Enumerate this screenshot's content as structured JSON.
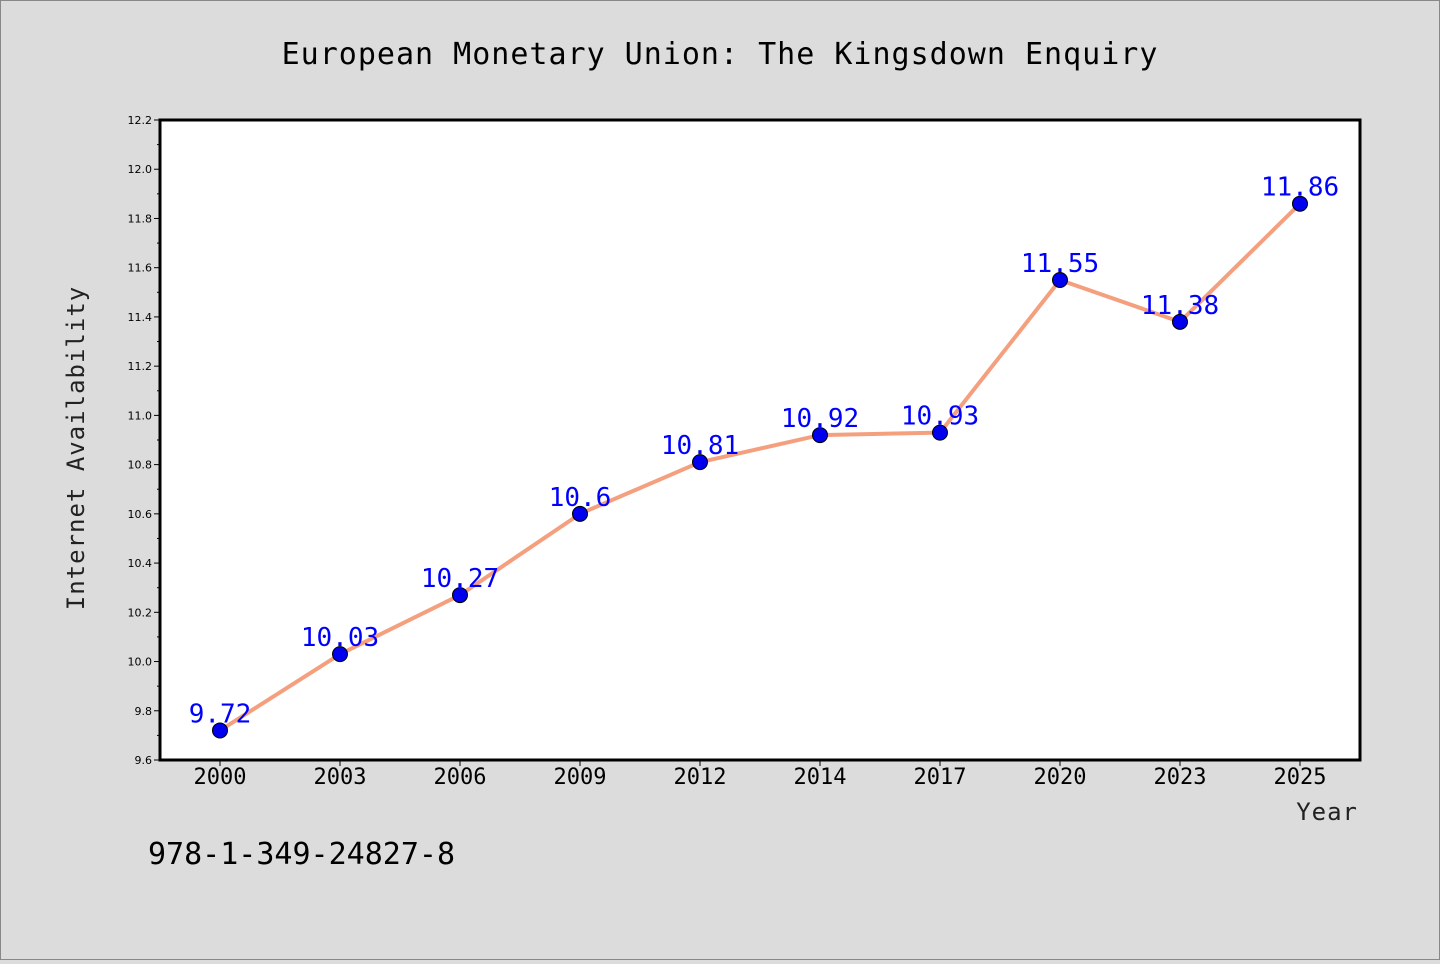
{
  "chart_data": {
    "type": "line",
    "title": "European Monetary Union: The Kingsdown Enquiry",
    "xlabel": "Year",
    "ylabel": "Internet Availability",
    "categories": [
      "2000",
      "2003",
      "2006",
      "2009",
      "2012",
      "2014",
      "2017",
      "2020",
      "2023",
      "2025"
    ],
    "series": [
      {
        "values": [
          9.72,
          10.03,
          10.27,
          10.6,
          10.81,
          10.92,
          10.93,
          11.55,
          11.38,
          11.86
        ],
        "data_labels": [
          "9.72",
          "10.03",
          "10.27",
          "10.6",
          "10.81",
          "10.92",
          "10.93",
          "11.55",
          "11.38",
          "11.86"
        ],
        "line_color": "#f4a07f",
        "marker_color": "#0000ee",
        "label_color": "#0000ff"
      }
    ],
    "ylim": [
      9.6,
      12.2
    ],
    "yticks": [
      "9.6",
      "9.8",
      "10.0",
      "10.2",
      "10.4",
      "10.6",
      "10.8",
      "11.0",
      "11.2",
      "11.4",
      "11.6",
      "11.8",
      "12.0",
      "12.2"
    ],
    "grid": false,
    "legend": false,
    "background": "#dcdcdc",
    "plot_background": "#ffffff"
  },
  "footer": {
    "isbn": "978-1-349-24827-8"
  }
}
